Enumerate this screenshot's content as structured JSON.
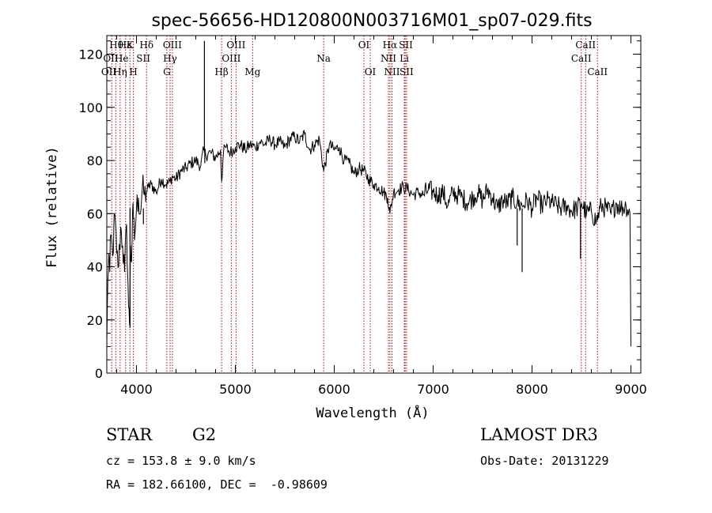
{
  "chart_data": {
    "type": "line",
    "title": "spec-56656-HD120800N003716M01_sp07-029.fits",
    "xlabel": "Wavelength (Å)",
    "ylabel": "Flux (relative)",
    "xlim": [
      3700,
      9100
    ],
    "ylim": [
      0,
      127
    ],
    "xticks": [
      4000,
      5000,
      6000,
      7000,
      8000,
      9000
    ],
    "yticks": [
      0,
      20,
      40,
      60,
      80,
      100,
      120
    ],
    "x_minor_step": 200,
    "y_minor_step": 5,
    "grid": false,
    "series": [
      {
        "x": [
          3700,
          3710,
          3720,
          3730,
          3740,
          3760,
          3780,
          3800,
          3820,
          3840,
          3860,
          3880,
          3900,
          3920,
          3930,
          3940,
          3950,
          3960,
          3970,
          3980,
          4000,
          4020,
          4040,
          4060,
          4080,
          4100,
          4120,
          4150,
          4200,
          4250,
          4300,
          4340,
          4360,
          4400,
          4450,
          4500,
          4550,
          4600,
          4650,
          4680,
          4700,
          4750,
          4800,
          4850,
          4861,
          4880,
          4900,
          4950,
          5000,
          5050,
          5100,
          5150,
          5200,
          5250,
          5300,
          5350,
          5400,
          5450,
          5500,
          5550,
          5600,
          5650,
          5700,
          5750,
          5800,
          5850,
          5893,
          5950,
          6000,
          6050,
          6100,
          6150,
          6200,
          6250,
          6300,
          6350,
          6400,
          6450,
          6500,
          6540,
          6563,
          6600,
          6650,
          6700,
          6750,
          6800,
          6850,
          6900,
          6950,
          7000,
          7050,
          7100,
          7150,
          7200,
          7250,
          7300,
          7350,
          7400,
          7450,
          7500,
          7550,
          7600,
          7650,
          7700,
          7750,
          7800,
          7850,
          7900,
          7950,
          8000,
          8050,
          8100,
          8150,
          8200,
          8250,
          8300,
          8350,
          8400,
          8450,
          8500,
          8550,
          8600,
          8650,
          8700,
          8750,
          8800,
          8850,
          8900,
          8950,
          8990,
          9000
        ],
        "y": [
          10,
          35,
          45,
          38,
          52,
          44,
          60,
          45,
          40,
          55,
          48,
          38,
          56,
          25,
          18,
          48,
          42,
          60,
          58,
          50,
          62,
          66,
          60,
          70,
          67,
          68,
          70,
          71,
          68,
          73,
          71,
          72,
          74,
          73,
          76,
          77,
          79,
          80,
          78,
          84,
          82,
          83,
          81,
          84,
          72,
          83,
          85,
          83,
          85,
          86,
          84,
          86,
          85,
          87,
          86,
          88,
          86,
          87,
          85,
          88,
          89,
          87,
          90,
          84,
          86,
          88,
          76,
          86,
          84,
          85,
          80,
          79,
          75,
          77,
          76,
          73,
          71,
          70,
          68,
          66,
          60,
          68,
          69,
          70,
          69,
          67,
          68,
          67,
          69,
          68,
          67,
          68,
          63,
          68,
          67,
          66,
          64,
          66,
          68,
          65,
          69,
          66,
          62,
          65,
          64,
          66,
          64,
          63,
          65,
          62,
          66,
          63,
          65,
          64,
          63,
          62,
          63,
          61,
          62,
          64,
          60,
          61,
          57,
          63,
          62,
          60,
          64,
          62,
          63,
          60,
          10
        ]
      }
    ],
    "spikes": [
      {
        "x": 4687,
        "y": 125
      },
      {
        "x": 4691,
        "y": 79
      },
      {
        "x": 7900,
        "y": 38
      },
      {
        "x": 7850,
        "y": 48
      },
      {
        "x": 8490,
        "y": 43
      },
      {
        "x": 4070,
        "y": 56
      },
      {
        "x": 3935,
        "y": 17
      }
    ]
  },
  "line_markers": {
    "color": "#cc0000",
    "positions": [
      3750,
      3790,
      3835,
      3890,
      3934,
      3969,
      4102,
      4307,
      4340,
      4363,
      4861,
      4959,
      5007,
      5175,
      5893,
      6300,
      6364,
      6548,
      6563,
      6584,
      6708,
      6717,
      6731,
      8498,
      8542,
      8662
    ]
  },
  "line_labels": [
    {
      "text": "Hθ",
      "x": 3797,
      "row": 0
    },
    {
      "text": "Hε",
      "x": 3885,
      "row": 0
    },
    {
      "text": "K",
      "x": 3934,
      "row": 0
    },
    {
      "text": "Hδ",
      "x": 4102,
      "row": 0
    },
    {
      "text": "OIII",
      "x": 4363,
      "row": 0
    },
    {
      "text": "OIII",
      "x": 5007,
      "row": 0
    },
    {
      "text": "OI",
      "x": 6300,
      "row": 0
    },
    {
      "text": "Hα",
      "x": 6563,
      "row": 0
    },
    {
      "text": "SII",
      "x": 6724,
      "row": 0
    },
    {
      "text": "CaII",
      "x": 8542,
      "row": 0
    },
    {
      "text": "OII",
      "x": 3740,
      "row": 1
    },
    {
      "text": "He",
      "x": 3850,
      "row": 1
    },
    {
      "text": "SII",
      "x": 4069,
      "row": 1
    },
    {
      "text": "Hγ",
      "x": 4340,
      "row": 1
    },
    {
      "text": "OIII",
      "x": 4959,
      "row": 1
    },
    {
      "text": "Na",
      "x": 5893,
      "row": 1
    },
    {
      "text": "NII",
      "x": 6548,
      "row": 1
    },
    {
      "text": "Li",
      "x": 6708,
      "row": 1
    },
    {
      "text": "CaII",
      "x": 8498,
      "row": 1
    },
    {
      "text": "OII",
      "x": 3720,
      "row": 2
    },
    {
      "text": "Hη",
      "x": 3835,
      "row": 2
    },
    {
      "text": "H",
      "x": 3969,
      "row": 2
    },
    {
      "text": "G",
      "x": 4307,
      "row": 2
    },
    {
      "text": "Hβ",
      "x": 4861,
      "row": 2
    },
    {
      "text": "Mg",
      "x": 5175,
      "row": 2
    },
    {
      "text": "OI",
      "x": 6364,
      "row": 2
    },
    {
      "text": "NII",
      "x": 6584,
      "row": 2
    },
    {
      "text": "SII",
      "x": 6731,
      "row": 2
    },
    {
      "text": "CaII",
      "x": 8662,
      "row": 2
    }
  ],
  "info": {
    "class": "STAR",
    "subclass": "G2",
    "survey": "LAMOST DR3",
    "cz": "cz = 153.8 ± 9.0 km/s",
    "obs_date": "Obs-Date: 20131229",
    "radec": "RA = 182.66100, DEC =  -0.98609"
  }
}
